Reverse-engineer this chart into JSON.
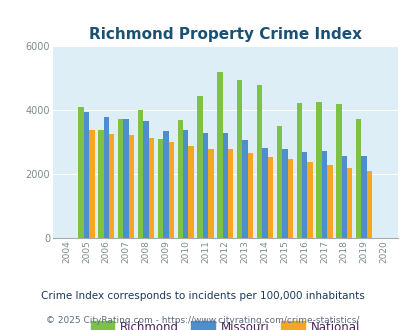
{
  "title": "Richmond Property Crime Index",
  "years": [
    2004,
    2005,
    2006,
    2007,
    2008,
    2009,
    2010,
    2011,
    2012,
    2013,
    2014,
    2015,
    2016,
    2017,
    2018,
    2019,
    2020
  ],
  "richmond": [
    null,
    4100,
    3380,
    3720,
    3990,
    3100,
    3680,
    4430,
    5180,
    4940,
    4770,
    3490,
    4210,
    4250,
    4200,
    3730,
    null
  ],
  "missouri": [
    null,
    3940,
    3790,
    3710,
    3640,
    3330,
    3370,
    3280,
    3280,
    3050,
    2820,
    2770,
    2670,
    2720,
    2570,
    2570,
    null
  ],
  "national": [
    null,
    3360,
    3260,
    3210,
    3130,
    2990,
    2860,
    2790,
    2780,
    2660,
    2530,
    2450,
    2370,
    2280,
    2180,
    2090,
    null
  ],
  "richmond_color": "#7dc242",
  "missouri_color": "#4d8fcc",
  "national_color": "#f5a623",
  "bg_color": "#ddeef6",
  "ylim": [
    0,
    6000
  ],
  "yticks": [
    0,
    2000,
    4000,
    6000
  ],
  "legend_labels": [
    "Richmond",
    "Missouri",
    "National"
  ],
  "subtitle": "Crime Index corresponds to incidents per 100,000 inhabitants",
  "footer": "© 2025 CityRating.com - https://www.cityrating.com/crime-statistics/",
  "title_color": "#1a5276",
  "legend_label_color": "#4a235a",
  "subtitle_color": "#1a3a5c",
  "footer_color": "#5d6d7e",
  "footer_link_color": "#2980b9",
  "grid_color": "#ffffff"
}
